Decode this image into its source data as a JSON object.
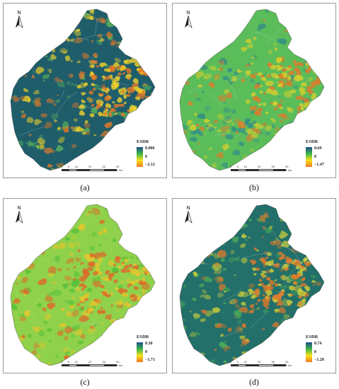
{
  "figure": {
    "panels": [
      {
        "id": "a",
        "caption": "(a)",
        "north_label": "N",
        "legend": {
          "title": "ESDR",
          "max": "0.006",
          "mid": "0",
          "min": "−2.12",
          "colors": [
            "#1f4e8c",
            "#3cb44b",
            "#f7e21a",
            "#f07820"
          ]
        },
        "scale_ticks": [
          "0",
          "5",
          "10",
          "20",
          "30",
          "40"
        ],
        "scale_unit": "km",
        "dominant_color": "#1f5d6b",
        "secondary_colors": [
          "#58b25a",
          "#f2d22a",
          "#e27a28"
        ]
      },
      {
        "id": "b",
        "caption": "(b)",
        "north_label": "N",
        "legend": {
          "title": "ESDR",
          "max": "0.69",
          "mid": "0",
          "min": "−1.47",
          "colors": [
            "#1f4e8c",
            "#3cb44b",
            "#f7e21a",
            "#f07820"
          ]
        },
        "scale_ticks": [
          "0",
          "5",
          "10",
          "20",
          "30",
          "40"
        ],
        "scale_unit": "km",
        "dominant_color": "#5bbd5a",
        "secondary_colors": [
          "#2f8a8a",
          "#d7d02c",
          "#e07a2c"
        ]
      },
      {
        "id": "c",
        "caption": "(c)",
        "north_label": "N",
        "legend": {
          "title": "ESDR",
          "max": "0.30",
          "mid": "0",
          "min": "−1.71",
          "colors": [
            "#1f4e8c",
            "#3cb44b",
            "#f7e21a",
            "#f07820"
          ]
        },
        "scale_ticks": [
          "0",
          "5",
          "10",
          "20",
          "30",
          "40"
        ],
        "scale_unit": "km",
        "dominant_color": "#8fd14a",
        "secondary_colors": [
          "#4fbf3a",
          "#e8c52a",
          "#e0682a"
        ]
      },
      {
        "id": "d",
        "caption": "(d)",
        "north_label": "N",
        "legend": {
          "title": "ESDR",
          "max": "0.74",
          "mid": "0",
          "min": "−1.28",
          "colors": [
            "#1f4e8c",
            "#3cb44b",
            "#f7e21a",
            "#f07820"
          ]
        },
        "scale_ticks": [
          "0",
          "5",
          "10",
          "20",
          "30",
          "40"
        ],
        "scale_unit": "km",
        "dominant_color": "#236f6a",
        "secondary_colors": [
          "#4fae56",
          "#cfd03a",
          "#e27a2a"
        ]
      }
    ]
  }
}
